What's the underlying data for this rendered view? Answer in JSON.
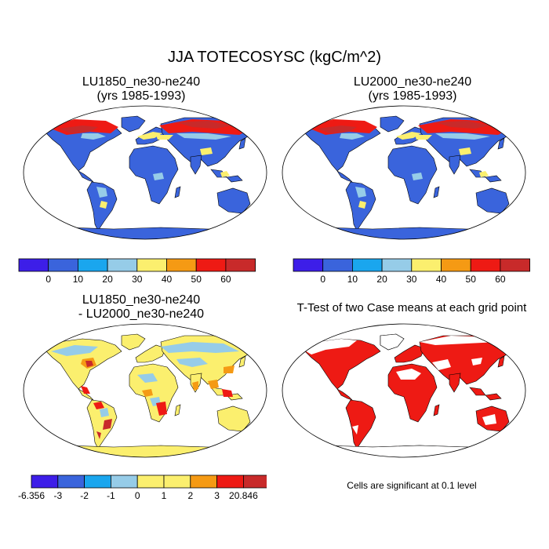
{
  "figure": {
    "title": "JJA TOTECOSYSC (kgC/m^2)"
  },
  "panels": [
    {
      "title_line1": "LU1850_ne30-ne240",
      "title_line2": "(yrs 1985-1993)"
    },
    {
      "title_line1": "LU2000_ne30-ne240",
      "title_line2": "(yrs 1985-1993)"
    },
    {
      "title_line1": "LU1850_ne30-ne240",
      "title_line2": "- LU2000_ne30-ne240"
    },
    {
      "title_line1": "T-Test of two Case means at each grid point",
      "title_line2": ""
    }
  ],
  "colorbars": {
    "absolute": {
      "labels": [
        "0",
        "10",
        "20",
        "30",
        "40",
        "50",
        "60"
      ],
      "colors": [
        "#3d1ee8",
        "#3a64dc",
        "#1aa6ee",
        "#96cce8",
        "#fbef6e",
        "#f59a14",
        "#ee1a14",
        "#c82a2a"
      ]
    },
    "difference": {
      "labels": [
        "-6.356",
        "-3",
        "-2",
        "-1",
        "0",
        "1",
        "2",
        "3",
        "20.846"
      ],
      "colors": [
        "#3d1ee8",
        "#3a64dc",
        "#1aa6ee",
        "#96cce8",
        "#fbef6e",
        "#fbef6e",
        "#f59a14",
        "#ee1a14",
        "#c82a2a"
      ]
    }
  },
  "significance_note": "Cells are significant at 0.1 level",
  "colors": {
    "land_base": "#3a64dc",
    "diff_base": "#fbef6e",
    "ttest": "#ee1a14",
    "ocean": "#ffffff",
    "outline": "#000000"
  }
}
